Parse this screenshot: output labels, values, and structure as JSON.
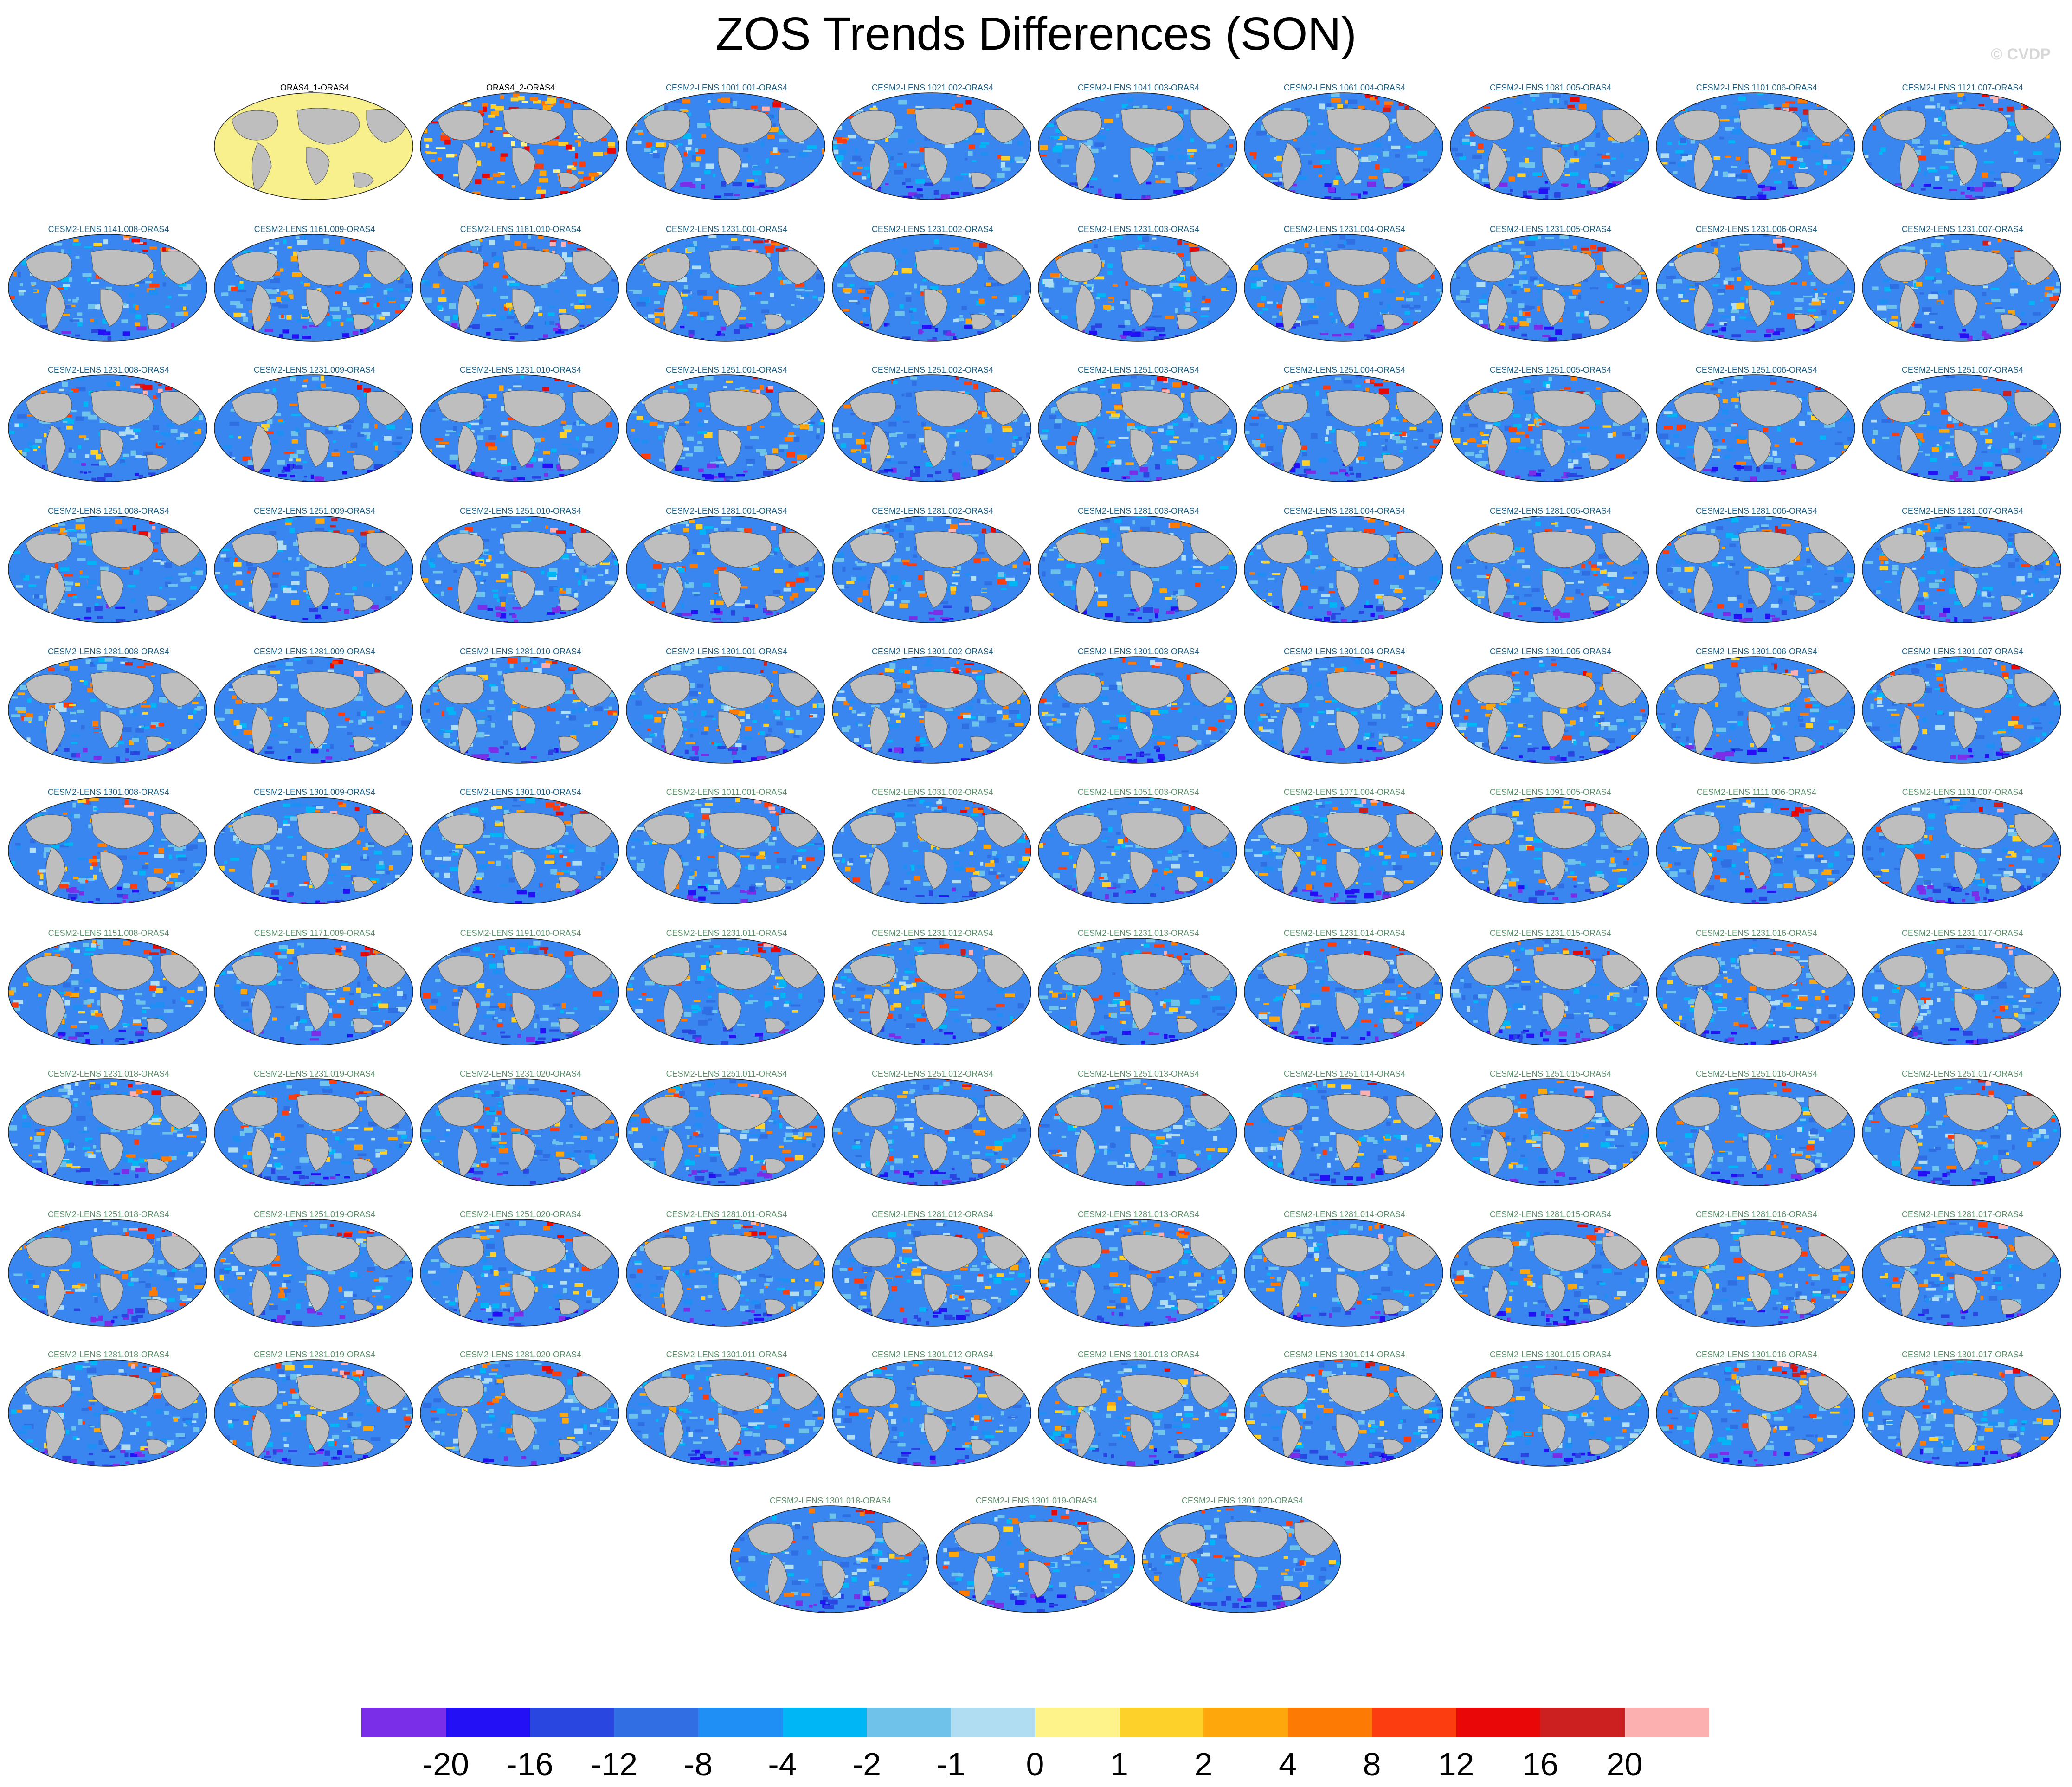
{
  "title": "ZOS Trends Differences (SON)",
  "copyright": "© CVDP",
  "panels": [
    {
      "label": "ORAS4_1-ORAS4",
      "kind": "obs_zero"
    },
    {
      "label": "ORAS4_2-ORAS4",
      "kind": "obs"
    },
    {
      "label": "CESM2-LENS 1001.001-ORAS4",
      "kind": "c1"
    },
    {
      "label": "CESM2-LENS 1021.002-ORAS4",
      "kind": "c1"
    },
    {
      "label": "CESM2-LENS 1041.003-ORAS4",
      "kind": "c1"
    },
    {
      "label": "CESM2-LENS 1061.004-ORAS4",
      "kind": "c1"
    },
    {
      "label": "CESM2-LENS 1081.005-ORAS4",
      "kind": "c1"
    },
    {
      "label": "CESM2-LENS 1101.006-ORAS4",
      "kind": "c1"
    },
    {
      "label": "CESM2-LENS 1121.007-ORAS4",
      "kind": "c1"
    },
    {
      "label": "CESM2-LENS 1141.008-ORAS4",
      "kind": "c1"
    },
    {
      "label": "CESM2-LENS 1161.009-ORAS4",
      "kind": "c1"
    },
    {
      "label": "CESM2-LENS 1181.010-ORAS4",
      "kind": "c1"
    },
    {
      "label": "CESM2-LENS 1231.001-ORAS4",
      "kind": "c1"
    },
    {
      "label": "CESM2-LENS 1231.002-ORAS4",
      "kind": "c1"
    },
    {
      "label": "CESM2-LENS 1231.003-ORAS4",
      "kind": "c1"
    },
    {
      "label": "CESM2-LENS 1231.004-ORAS4",
      "kind": "c1"
    },
    {
      "label": "CESM2-LENS 1231.005-ORAS4",
      "kind": "c1"
    },
    {
      "label": "CESM2-LENS 1231.006-ORAS4",
      "kind": "c1"
    },
    {
      "label": "CESM2-LENS 1231.007-ORAS4",
      "kind": "c1"
    },
    {
      "label": "CESM2-LENS 1231.008-ORAS4",
      "kind": "c1"
    },
    {
      "label": "CESM2-LENS 1231.009-ORAS4",
      "kind": "c1"
    },
    {
      "label": "CESM2-LENS 1231.010-ORAS4",
      "kind": "c1"
    },
    {
      "label": "CESM2-LENS 1251.001-ORAS4",
      "kind": "c1"
    },
    {
      "label": "CESM2-LENS 1251.002-ORAS4",
      "kind": "c1"
    },
    {
      "label": "CESM2-LENS 1251.003-ORAS4",
      "kind": "c1"
    },
    {
      "label": "CESM2-LENS 1251.004-ORAS4",
      "kind": "c1"
    },
    {
      "label": "CESM2-LENS 1251.005-ORAS4",
      "kind": "c1"
    },
    {
      "label": "CESM2-LENS 1251.006-ORAS4",
      "kind": "c1"
    },
    {
      "label": "CESM2-LENS 1251.007-ORAS4",
      "kind": "c1"
    },
    {
      "label": "CESM2-LENS 1251.008-ORAS4",
      "kind": "c1"
    },
    {
      "label": "CESM2-LENS 1251.009-ORAS4",
      "kind": "c1"
    },
    {
      "label": "CESM2-LENS 1251.010-ORAS4",
      "kind": "c1"
    },
    {
      "label": "CESM2-LENS 1281.001-ORAS4",
      "kind": "c1"
    },
    {
      "label": "CESM2-LENS 1281.002-ORAS4",
      "kind": "c1"
    },
    {
      "label": "CESM2-LENS 1281.003-ORAS4",
      "kind": "c1"
    },
    {
      "label": "CESM2-LENS 1281.004-ORAS4",
      "kind": "c1"
    },
    {
      "label": "CESM2-LENS 1281.005-ORAS4",
      "kind": "c1"
    },
    {
      "label": "CESM2-LENS 1281.006-ORAS4",
      "kind": "c1"
    },
    {
      "label": "CESM2-LENS 1281.007-ORAS4",
      "kind": "c1"
    },
    {
      "label": "CESM2-LENS 1281.008-ORAS4",
      "kind": "c1"
    },
    {
      "label": "CESM2-LENS 1281.009-ORAS4",
      "kind": "c1"
    },
    {
      "label": "CESM2-LENS 1281.010-ORAS4",
      "kind": "c1"
    },
    {
      "label": "CESM2-LENS 1301.001-ORAS4",
      "kind": "c1"
    },
    {
      "label": "CESM2-LENS 1301.002-ORAS4",
      "kind": "c1"
    },
    {
      "label": "CESM2-LENS 1301.003-ORAS4",
      "kind": "c1"
    },
    {
      "label": "CESM2-LENS 1301.004-ORAS4",
      "kind": "c1"
    },
    {
      "label": "CESM2-LENS 1301.005-ORAS4",
      "kind": "c1"
    },
    {
      "label": "CESM2-LENS 1301.006-ORAS4",
      "kind": "c1"
    },
    {
      "label": "CESM2-LENS 1301.007-ORAS4",
      "kind": "c1"
    },
    {
      "label": "CESM2-LENS 1301.008-ORAS4",
      "kind": "c1"
    },
    {
      "label": "CESM2-LENS 1301.009-ORAS4",
      "kind": "c1"
    },
    {
      "label": "CESM2-LENS 1301.010-ORAS4",
      "kind": "c1"
    },
    {
      "label": "CESM2-LENS 1011.001-ORAS4",
      "kind": "c2"
    },
    {
      "label": "CESM2-LENS 1031.002-ORAS4",
      "kind": "c2"
    },
    {
      "label": "CESM2-LENS 1051.003-ORAS4",
      "kind": "c2"
    },
    {
      "label": "CESM2-LENS 1071.004-ORAS4",
      "kind": "c2"
    },
    {
      "label": "CESM2-LENS 1091.005-ORAS4",
      "kind": "c2"
    },
    {
      "label": "CESM2-LENS 1111.006-ORAS4",
      "kind": "c2"
    },
    {
      "label": "CESM2-LENS 1131.007-ORAS4",
      "kind": "c2"
    },
    {
      "label": "CESM2-LENS 1151.008-ORAS4",
      "kind": "c2"
    },
    {
      "label": "CESM2-LENS 1171.009-ORAS4",
      "kind": "c2"
    },
    {
      "label": "CESM2-LENS 1191.010-ORAS4",
      "kind": "c2"
    },
    {
      "label": "CESM2-LENS 1231.011-ORAS4",
      "kind": "c2"
    },
    {
      "label": "CESM2-LENS 1231.012-ORAS4",
      "kind": "c2"
    },
    {
      "label": "CESM2-LENS 1231.013-ORAS4",
      "kind": "c2"
    },
    {
      "label": "CESM2-LENS 1231.014-ORAS4",
      "kind": "c2"
    },
    {
      "label": "CESM2-LENS 1231.015-ORAS4",
      "kind": "c2"
    },
    {
      "label": "CESM2-LENS 1231.016-ORAS4",
      "kind": "c2"
    },
    {
      "label": "CESM2-LENS 1231.017-ORAS4",
      "kind": "c2"
    },
    {
      "label": "CESM2-LENS 1231.018-ORAS4",
      "kind": "c2"
    },
    {
      "label": "CESM2-LENS 1231.019-ORAS4",
      "kind": "c2"
    },
    {
      "label": "CESM2-LENS 1231.020-ORAS4",
      "kind": "c2"
    },
    {
      "label": "CESM2-LENS 1251.011-ORAS4",
      "kind": "c2"
    },
    {
      "label": "CESM2-LENS 1251.012-ORAS4",
      "kind": "c2"
    },
    {
      "label": "CESM2-LENS 1251.013-ORAS4",
      "kind": "c2"
    },
    {
      "label": "CESM2-LENS 1251.014-ORAS4",
      "kind": "c2"
    },
    {
      "label": "CESM2-LENS 1251.015-ORAS4",
      "kind": "c2"
    },
    {
      "label": "CESM2-LENS 1251.016-ORAS4",
      "kind": "c2"
    },
    {
      "label": "CESM2-LENS 1251.017-ORAS4",
      "kind": "c2"
    },
    {
      "label": "CESM2-LENS 1251.018-ORAS4",
      "kind": "c2"
    },
    {
      "label": "CESM2-LENS 1251.019-ORAS4",
      "kind": "c2"
    },
    {
      "label": "CESM2-LENS 1251.020-ORAS4",
      "kind": "c2"
    },
    {
      "label": "CESM2-LENS 1281.011-ORAS4",
      "kind": "c2"
    },
    {
      "label": "CESM2-LENS 1281.012-ORAS4",
      "kind": "c2"
    },
    {
      "label": "CESM2-LENS 1281.013-ORAS4",
      "kind": "c2"
    },
    {
      "label": "CESM2-LENS 1281.014-ORAS4",
      "kind": "c2"
    },
    {
      "label": "CESM2-LENS 1281.015-ORAS4",
      "kind": "c2"
    },
    {
      "label": "CESM2-LENS 1281.016-ORAS4",
      "kind": "c2"
    },
    {
      "label": "CESM2-LENS 1281.017-ORAS4",
      "kind": "c2"
    },
    {
      "label": "CESM2-LENS 1281.018-ORAS4",
      "kind": "c2"
    },
    {
      "label": "CESM2-LENS 1281.019-ORAS4",
      "kind": "c2"
    },
    {
      "label": "CESM2-LENS 1281.020-ORAS4",
      "kind": "c2"
    },
    {
      "label": "CESM2-LENS 1301.011-ORAS4",
      "kind": "c2"
    },
    {
      "label": "CESM2-LENS 1301.012-ORAS4",
      "kind": "c2"
    },
    {
      "label": "CESM2-LENS 1301.013-ORAS4",
      "kind": "c2"
    },
    {
      "label": "CESM2-LENS 1301.014-ORAS4",
      "kind": "c2"
    },
    {
      "label": "CESM2-LENS 1301.015-ORAS4",
      "kind": "c2"
    },
    {
      "label": "CESM2-LENS 1301.016-ORAS4",
      "kind": "c2"
    },
    {
      "label": "CESM2-LENS 1301.017-ORAS4",
      "kind": "c2"
    },
    {
      "label": "CESM2-LENS 1301.018-ORAS4",
      "kind": "c2"
    },
    {
      "label": "CESM2-LENS 1301.019-ORAS4",
      "kind": "c2"
    },
    {
      "label": "CESM2-LENS 1301.020-ORAS4",
      "kind": "c2"
    }
  ],
  "colorbar": {
    "labels": [
      "-20",
      "-16",
      "-12",
      "-8",
      "-4",
      "-2",
      "-1",
      "0",
      "1",
      "2",
      "4",
      "8",
      "12",
      "16",
      "20"
    ],
    "colors": [
      "#7b2ee8",
      "#2410f5",
      "#2a46e0",
      "#2f6fe3",
      "#1f8ff5",
      "#00b6f5",
      "#6fc3eb",
      "#b0ddf2",
      "#fdf38a",
      "#fdd02a",
      "#fda70c",
      "#fd7a05",
      "#fc3d10",
      "#e80808",
      "#cc1f1f",
      "#fdb0b0"
    ]
  },
  "map_colors": {
    "land": "#bebebe",
    "ocean_base": "#3a86f0",
    "neutral": "#f8f08c",
    "coast": "#555555"
  }
}
